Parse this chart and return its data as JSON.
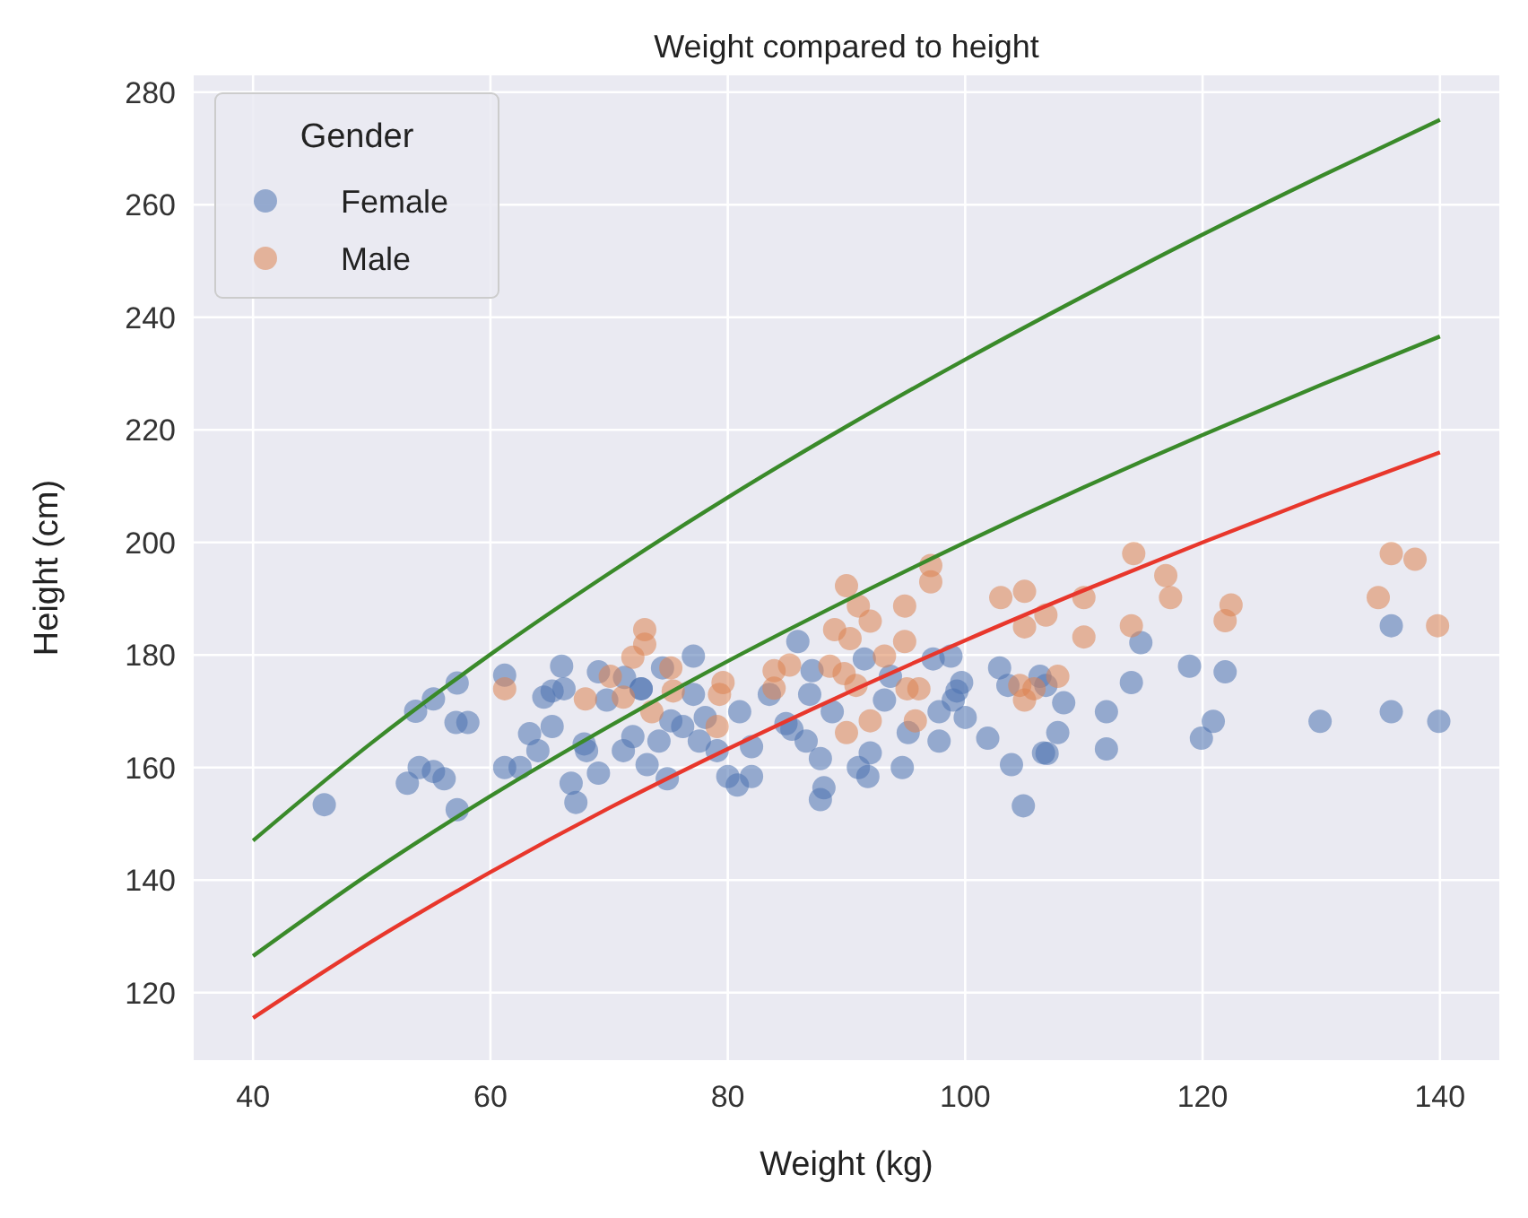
{
  "chart_data": {
    "type": "scatter",
    "title": "Weight compared to height",
    "xlabel": "Weight (kg)",
    "ylabel": "Height (cm)",
    "legend_title": "Gender",
    "legend": "top left",
    "grid": true,
    "marker": "circle",
    "xlim": [
      35,
      145
    ],
    "ylim": [
      108,
      283
    ],
    "xticks": [
      40,
      60,
      80,
      100,
      120,
      140
    ],
    "yticks": [
      120,
      140,
      160,
      180,
      200,
      220,
      240,
      260,
      280
    ],
    "series": [
      {
        "name": "Female",
        "color": "#4c72b0",
        "x": [
          46,
          53.7,
          55.2,
          57.2,
          57.1,
          58.1,
          54,
          53,
          55.2,
          56.1,
          57.2,
          61.2,
          61.2,
          62.5,
          63.3,
          64,
          64.5,
          65.2,
          65.2,
          66.2,
          66,
          67.9,
          68.1,
          66.8,
          67.2,
          69.1,
          69.1,
          69.8,
          71.2,
          72,
          71.3,
          72.7,
          77.1,
          74.5,
          72.7,
          75.2,
          76.2,
          73.2,
          74.9,
          77.1,
          78.1,
          77.6,
          80,
          82,
          80.8,
          81,
          82,
          83.5,
          84.9,
          85.9,
          87.1,
          86.9,
          86.6,
          87.8,
          88.1,
          87.8,
          88.8,
          91.5,
          91,
          91.8,
          92,
          93.2,
          93.7,
          94.7,
          95.2,
          97.3,
          98.8,
          97.8,
          99,
          99.7,
          100,
          99.3,
          97.8,
          101.9,
          102.9,
          103.6,
          103.9,
          104.9,
          106.6,
          106.8,
          106.3,
          74.2,
          79.1,
          85.4,
          114.8,
          118.9,
          121.9,
          114,
          108.3,
          111.9,
          107.8,
          106.9,
          111.9,
          120.9,
          119.9,
          129.9,
          135.9,
          139.9,
          135.9
        ],
        "values": [
          153.4,
          170,
          172.2,
          175,
          168,
          168,
          160,
          157.2,
          159.3,
          158,
          152.5,
          176.4,
          160,
          160,
          166,
          163,
          172.5,
          173.6,
          167.3,
          174,
          178,
          164.2,
          163,
          157.2,
          153.8,
          159,
          177,
          172,
          163,
          165.5,
          176,
          174,
          179.8,
          177.7,
          174,
          168.3,
          167.3,
          160.5,
          158,
          173,
          168.9,
          164.7,
          158.4,
          158.4,
          156.9,
          169.9,
          163.7,
          173,
          167.8,
          182.4,
          177.2,
          173,
          164.7,
          161.6,
          156.4,
          154.3,
          169.9,
          179.3,
          160,
          158.4,
          162.6,
          172,
          176.2,
          160,
          166.2,
          179.3,
          179.8,
          169.9,
          172,
          175.1,
          168.9,
          173.6,
          164.7,
          165.2,
          177.7,
          174.6,
          160.5,
          153.2,
          162.6,
          174.6,
          176.2,
          164.7,
          163,
          166.8,
          182.2,
          178,
          177,
          175.1,
          171.5,
          169.9,
          166.2,
          162.5,
          163.3,
          168.2,
          165.2,
          168.2,
          169.9,
          168.2,
          185.2
        ]
      },
      {
        "name": "Male",
        "color": "#dd8452",
        "x": [
          61.2,
          68,
          70.1,
          71.2,
          72,
          73,
          73,
          75.2,
          73.6,
          75.4,
          79.6,
          79.3,
          79.1,
          83.9,
          85.2,
          83.9,
          88.6,
          90,
          91,
          92,
          89,
          90.3,
          89.8,
          90.8,
          90,
          92,
          93.2,
          94.9,
          94.9,
          95.1,
          96.1,
          95.8,
          97.1,
          97.1,
          103,
          105,
          105,
          106.8,
          104.6,
          105,
          105.8,
          114.2,
          116.9,
          117.3,
          110,
          110,
          114,
          122.4,
          121.9,
          107.8,
          135.9,
          137.9,
          134.8,
          139.8
        ],
        "values": [
          174,
          172.2,
          176.2,
          172.5,
          179.6,
          181.9,
          184.5,
          177.7,
          169.9,
          173.6,
          175.1,
          173,
          167.3,
          177.2,
          178.2,
          174.1,
          178,
          192.3,
          188.7,
          186,
          184.5,
          182.9,
          176.7,
          174.6,
          166.2,
          168.3,
          179.8,
          188.7,
          182.4,
          174,
          174,
          168.3,
          195.9,
          193,
          190.2,
          191.3,
          185,
          187.1,
          174.6,
          172,
          174,
          198,
          194.1,
          190.2,
          190.2,
          183.2,
          185.2,
          188.9,
          186.1,
          176.2,
          198,
          197,
          190.2,
          185.2
        ]
      },
      {
        "type": "line",
        "marker": "none",
        "color": "#3a8a2a",
        "x": [
          40,
          50,
          60,
          70,
          80,
          90,
          100,
          110,
          120,
          130,
          140
        ],
        "values": [
          147,
          164.4,
          180.1,
          194.5,
          208,
          220.6,
          232.5,
          243.8,
          254.7,
          265.1,
          275.1
        ]
      },
      {
        "type": "line",
        "marker": "none",
        "color": "#3a8a2a",
        "x": [
          40,
          50,
          60,
          70,
          80,
          90,
          100,
          110,
          120,
          130,
          140
        ],
        "values": [
          126.5,
          141.4,
          154.9,
          167.3,
          178.9,
          189.7,
          200,
          209.8,
          219.1,
          228,
          236.6
        ]
      },
      {
        "type": "line",
        "marker": "none",
        "color": "#e8372c",
        "x": [
          40,
          50,
          60,
          70,
          80,
          90,
          100,
          110,
          120,
          130,
          140
        ],
        "values": [
          115.5,
          129.1,
          141.4,
          152.8,
          163.3,
          173.2,
          182.6,
          191.5,
          200,
          208.2,
          216
        ]
      }
    ]
  }
}
